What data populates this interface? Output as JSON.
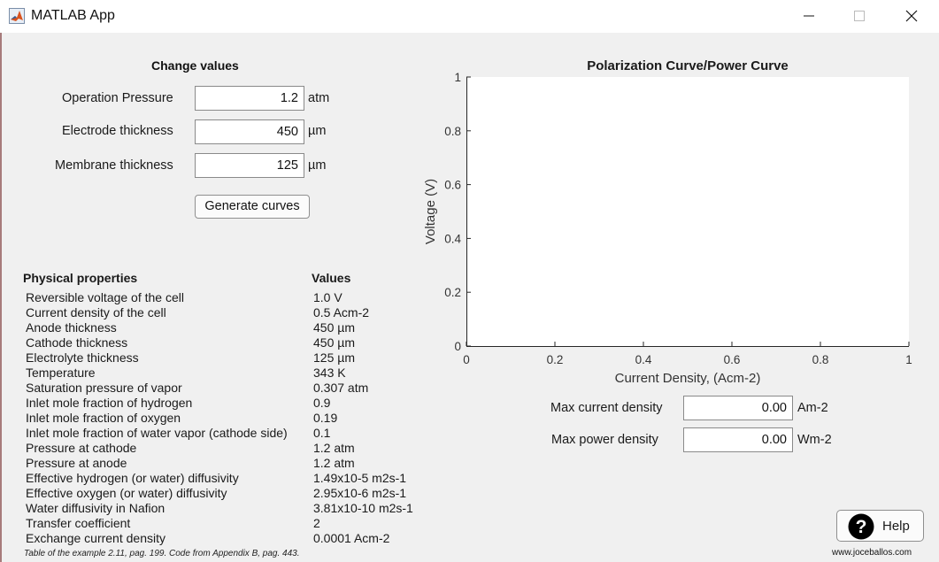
{
  "window": {
    "title": "MATLAB App"
  },
  "change_values": {
    "title": "Change values",
    "pressure": {
      "label": "Operation Pressure",
      "value": "1.2",
      "unit": "atm"
    },
    "electrode": {
      "label": "Electrode thickness",
      "value": "450",
      "unit": "µm"
    },
    "membrane": {
      "label": "Membrane thickness",
      "value": "125",
      "unit": "µm"
    },
    "generate_label": "Generate curves"
  },
  "properties": {
    "header_property": "Physical properties",
    "header_value": "Values",
    "rows": [
      {
        "name": "Reversible voltage of the cell",
        "value": "1.0 V"
      },
      {
        "name": "Current density of the cell",
        "value": "0.5 Acm-2"
      },
      {
        "name": "Anode thickness",
        "value": "450 µm"
      },
      {
        "name": "Cathode thickness",
        "value": "450 µm"
      },
      {
        "name": "Electrolyte thickness",
        "value": "125 µm"
      },
      {
        "name": "Temperature",
        "value": "343 K"
      },
      {
        "name": "Saturation pressure of vapor",
        "value": "0.307 atm"
      },
      {
        "name": "Inlet mole fraction of hydrogen",
        "value": "0.9"
      },
      {
        "name": "Inlet mole fraction of oxygen",
        "value": "0.19"
      },
      {
        "name": "Inlet mole fraction of water vapor (cathode side)",
        "value": "0.1"
      },
      {
        "name": "Pressure at cathode",
        "value": "1.2 atm"
      },
      {
        "name": "Pressure at anode",
        "value": "1.2 atm"
      },
      {
        "name": "Effective hydrogen (or water) diffusivity",
        "value": "1.49x10-5 m2s-1"
      },
      {
        "name": "Effective oxygen (or water) diffusivity",
        "value": "2.95x10-6 m2s-1"
      },
      {
        "name": "Water diffusivity in Nafion",
        "value": "3.81x10-10 m2s-1"
      },
      {
        "name": "Transfer coefficient",
        "value": "2"
      },
      {
        "name": "Exchange current density",
        "value": "0.0001 Acm-2"
      }
    ],
    "footnote": "Table of the example 2.11, pag. 199. Code from Appendix B, pag. 443."
  },
  "chart_data": {
    "type": "line",
    "title": "Polarization Curve/Power Curve",
    "xlabel": "Current Density, (Acm-2)",
    "ylabel": "Voltage (V)",
    "xlim": [
      0,
      1
    ],
    "ylim": [
      0,
      1
    ],
    "xticks": [
      "0",
      "0.2",
      "0.4",
      "0.6",
      "0.8",
      "1"
    ],
    "yticks": [
      "0",
      "0.2",
      "0.4",
      "0.6",
      "0.8",
      "1"
    ],
    "series": [],
    "grid": false
  },
  "results": {
    "max_current": {
      "label": "Max current density",
      "value": "0.00",
      "unit": "Am-2"
    },
    "max_power": {
      "label": "Max power density",
      "value": "0.00",
      "unit": "Wm-2"
    }
  },
  "help_label": "Help",
  "site": "www.joceballos.com"
}
